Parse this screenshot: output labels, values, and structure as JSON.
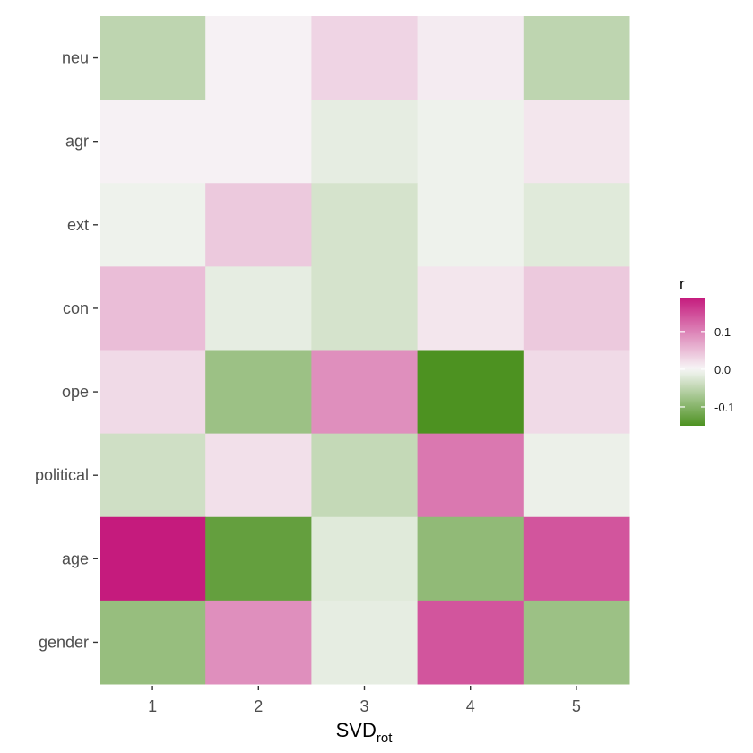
{
  "chart_data": {
    "type": "heatmap",
    "x_categories": [
      "1",
      "2",
      "3",
      "4",
      "5"
    ],
    "y_categories": [
      "neu",
      "agr",
      "ext",
      "con",
      "ope",
      "political",
      "age",
      "gender"
    ],
    "xlabel_main": "SVD",
    "xlabel_sub": "rot",
    "ylabel": "",
    "legend": {
      "title": "r",
      "ticks": [
        {
          "value": 0.1,
          "label": "0.1"
        },
        {
          "value": 0.0,
          "label": "0.0"
        },
        {
          "value": -0.1,
          "label": "-0.1"
        }
      ],
      "range": [
        -0.15,
        0.19
      ],
      "placement": "right"
    },
    "colors": {
      "low": "#4d9221",
      "mid": "#f7f7f7",
      "high": "#c51b7d"
    },
    "values": [
      [
        -0.05,
        0.005,
        0.03,
        0.01,
        -0.05
      ],
      [
        0.005,
        0.005,
        -0.015,
        -0.008,
        0.015
      ],
      [
        -0.008,
        0.04,
        -0.03,
        -0.008,
        -0.02
      ],
      [
        0.05,
        -0.015,
        -0.03,
        0.015,
        0.04
      ],
      [
        0.025,
        -0.08,
        0.09,
        -0.15,
        0.025
      ],
      [
        -0.035,
        0.02,
        -0.045,
        0.11,
        -0.01
      ],
      [
        0.19,
        -0.13,
        -0.02,
        -0.09,
        0.14
      ],
      [
        -0.085,
        0.09,
        -0.015,
        0.14,
        -0.08
      ]
    ]
  }
}
